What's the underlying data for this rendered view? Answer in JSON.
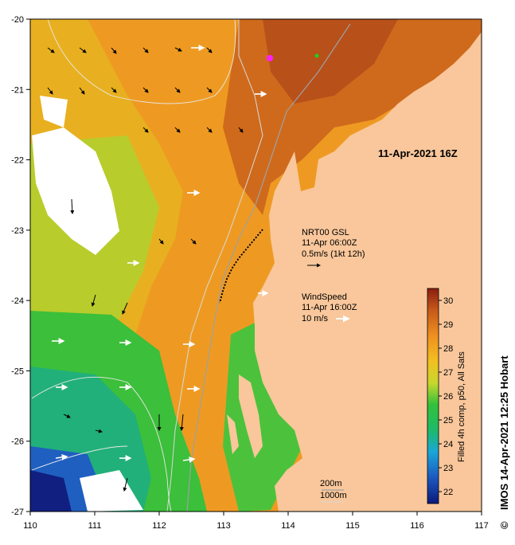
{
  "map": {
    "x_ticks": [
      "110",
      "111",
      "112",
      "113",
      "114",
      "115",
      "116",
      "117"
    ],
    "y_ticks": [
      "-20",
      "-21",
      "-22",
      "-23",
      "-24",
      "-25",
      "-26",
      "-27"
    ],
    "lon_range": [
      110,
      117
    ],
    "lat_range": [
      -27,
      -20
    ],
    "colors": {
      "land": "#f9c79b",
      "cloud": "#ffffff",
      "frame": "#000000"
    }
  },
  "annotations": {
    "date_label": "11-Apr-2021 16Z",
    "current_title": "NRT00 GSL",
    "current_time": "11-Apr 06:00Z",
    "current_scale": "0.5m/s (1kt 12h)",
    "wind_title": "WindSpeed",
    "wind_time": "11-Apr 16:00Z",
    "wind_scale": "10 m/s",
    "depth_1": "200m",
    "depth_2": "1000m"
  },
  "colorbar": {
    "ticks": [
      "30",
      "29",
      "28",
      "27",
      "26",
      "25",
      "24",
      "23",
      "22"
    ],
    "min": 21.5,
    "max": 30.5,
    "label": "Filled 4h comp, p50, All Sats"
  },
  "credit": "IMOS 14-Apr-2021 12:25 Hobart",
  "copyright": "©"
}
